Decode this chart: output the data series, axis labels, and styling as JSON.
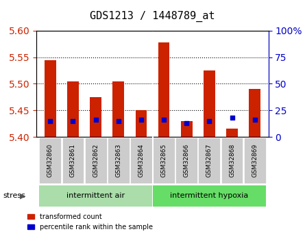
{
  "title": "GDS1213 / 1448789_at",
  "samples": [
    "GSM32860",
    "GSM32861",
    "GSM32862",
    "GSM32863",
    "GSM32864",
    "GSM32865",
    "GSM32866",
    "GSM32867",
    "GSM32868",
    "GSM32869"
  ],
  "transformed_count": [
    5.545,
    5.505,
    5.475,
    5.505,
    5.45,
    5.578,
    5.43,
    5.525,
    5.415,
    5.49
  ],
  "percentile_rank": [
    15,
    15,
    16,
    15,
    16,
    16,
    13,
    15,
    18,
    16
  ],
  "ylim_left": [
    5.4,
    5.6
  ],
  "ylim_right": [
    0,
    100
  ],
  "bar_color": "#cc2200",
  "dot_color": "#0000cc",
  "baseline": 5.4,
  "group1_label": "intermittent air",
  "group2_label": "intermittent hypoxia",
  "group1_color": "#aaddaa",
  "group2_color": "#66dd66",
  "stress_label": "stress",
  "legend_red": "transformed count",
  "legend_blue": "percentile rank within the sample",
  "yticks_left": [
    5.4,
    5.45,
    5.5,
    5.55,
    5.6
  ],
  "yticks_right": [
    0,
    25,
    50,
    75,
    100
  ],
  "ytick_labels_right": [
    "0",
    "25",
    "50",
    "75",
    "100%"
  ],
  "dotted_lines": [
    5.45,
    5.5,
    5.55
  ],
  "background_color": "#ffffff",
  "plot_bg": "#ffffff",
  "tick_area_color": "#dddddd"
}
